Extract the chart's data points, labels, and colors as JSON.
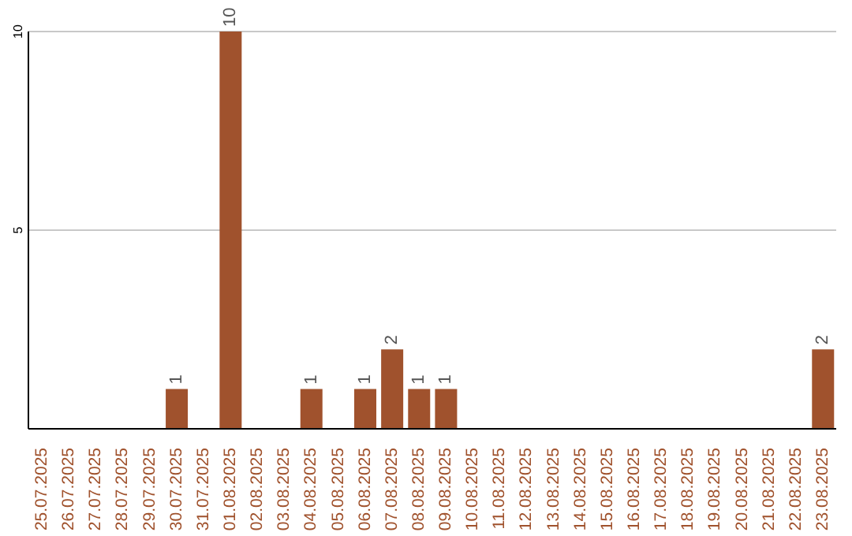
{
  "chart_data": {
    "type": "bar",
    "categories": [
      "25.07.2025",
      "26.07.2025",
      "27.07.2025",
      "28.07.2025",
      "29.07.2025",
      "30.07.2025",
      "31.07.2025",
      "01.08.2025",
      "02.08.2025",
      "03.08.2025",
      "04.08.2025",
      "05.08.2025",
      "06.08.2025",
      "07.08.2025",
      "08.08.2025",
      "09.08.2025",
      "10.08.2025",
      "11.08.2025",
      "12.08.2025",
      "13.08.2025",
      "14.08.2025",
      "15.08.2025",
      "16.08.2025",
      "17.08.2025",
      "18.08.2025",
      "19.08.2025",
      "20.08.2025",
      "21.08.2025",
      "22.08.2025",
      "23.08.2025"
    ],
    "values": [
      0,
      0,
      0,
      0,
      0,
      1,
      0,
      10,
      0,
      0,
      1,
      0,
      1,
      2,
      1,
      1,
      0,
      0,
      0,
      0,
      0,
      0,
      0,
      0,
      0,
      0,
      0,
      0,
      0,
      2
    ],
    "value_labels": [
      null,
      null,
      null,
      null,
      null,
      "1",
      null,
      "10",
      null,
      null,
      "1",
      null,
      "1",
      "2",
      "1",
      "1",
      null,
      null,
      null,
      null,
      null,
      null,
      null,
      null,
      null,
      null,
      null,
      null,
      null,
      "2"
    ],
    "color": "#a0522d",
    "ylim": [
      0,
      10
    ],
    "yticks": [
      5,
      10
    ],
    "grid": "y"
  }
}
